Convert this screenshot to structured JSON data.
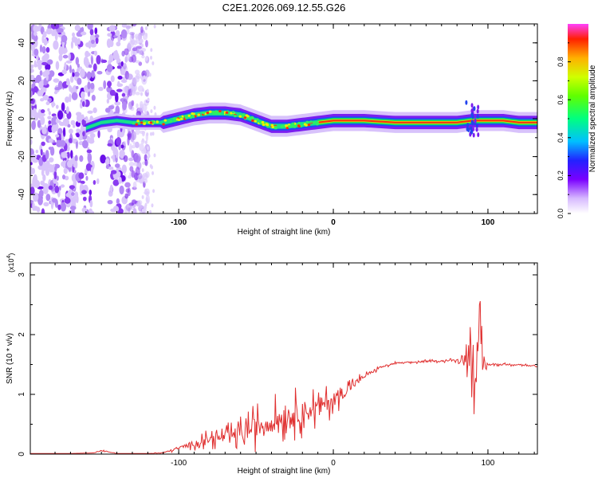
{
  "figure_title": "C2E1.2026.069.12.55.G26",
  "colors": {
    "snr_line": "#e03030",
    "spec_base": "#8a2be2",
    "axis": "#000000",
    "background": "#ffffff"
  },
  "chart_data": [
    {
      "type": "heatmap",
      "title": "C2E1.2026.069.12.55.G26",
      "xlabel": "Height of straight line (km)",
      "ylabel": "Frequency (Hz)",
      "xlim": [
        -196,
        132
      ],
      "ylim": [
        -50,
        50
      ],
      "xticks": [
        -100,
        0,
        100
      ],
      "xtick_labels": [
        "-100",
        "0",
        "100"
      ],
      "yticks": [
        -40,
        -20,
        0,
        20,
        40
      ],
      "ytick_labels": [
        "-40",
        "-20",
        "0",
        "20",
        "40"
      ],
      "colorbar": {
        "label": "Normalized spectral amplitude",
        "range": [
          0,
          1
        ],
        "ticks": [
          0.0,
          0.2,
          0.4,
          0.6,
          0.8
        ],
        "tick_labels": [
          "0.0",
          "0.2",
          "0.4",
          "0.6",
          "0.8"
        ]
      },
      "ridge": {
        "x": [
          -160,
          -150,
          -140,
          -130,
          -120,
          -110,
          -100,
          -90,
          -80,
          -70,
          -60,
          -50,
          -40,
          -30,
          -20,
          -10,
          0,
          10,
          20,
          40,
          60,
          80,
          90,
          100,
          110,
          120,
          132
        ],
        "freq": [
          -5,
          -2,
          -1,
          -2,
          -2,
          -2,
          0,
          2,
          3,
          3,
          2,
          -1,
          -4,
          -4,
          -3,
          -2,
          -1,
          -1,
          -1,
          -2,
          -2,
          -2,
          -1,
          -1,
          -1,
          -2,
          -2
        ]
      },
      "noise_region_x": [
        -196,
        -120
      ],
      "strong_region_x": [
        -10,
        132
      ]
    },
    {
      "type": "line",
      "title": "",
      "xlabel": "Height of straight line (km)",
      "ylabel": "SNR (10 * v/v)",
      "y_scale_label": "(x10",
      "y_scale_exponent": "4",
      "xlim": [
        -196,
        132
      ],
      "ylim": [
        0,
        3.2
      ],
      "xticks": [
        -100,
        0,
        100
      ],
      "xtick_labels": [
        "-100",
        "0",
        "100"
      ],
      "yticks": [
        0,
        1,
        2,
        3
      ],
      "ytick_labels": [
        "0",
        "1",
        "2",
        "3"
      ],
      "series": [
        {
          "name": "SNR",
          "x": [
            -196,
            -170,
            -155,
            -150,
            -140,
            -120,
            -110,
            -100,
            -90,
            -80,
            -70,
            -60,
            -50,
            -40,
            -30,
            -20,
            -10,
            0,
            10,
            20,
            30,
            40,
            60,
            70,
            80,
            85,
            90,
            93,
            95,
            97,
            100,
            110,
            120,
            132
          ],
          "y": [
            0.01,
            0.01,
            0.02,
            0.06,
            0.01,
            0.01,
            0.02,
            0.1,
            0.18,
            0.25,
            0.28,
            0.35,
            0.45,
            0.55,
            0.65,
            0.7,
            0.78,
            0.92,
            1.1,
            1.3,
            1.45,
            1.52,
            1.55,
            1.56,
            1.57,
            1.62,
            1.65,
            1.5,
            1.45,
            1.48,
            1.5,
            1.5,
            1.5,
            1.46
          ],
          "noise_amp": [
            0,
            0,
            0,
            0.02,
            0,
            0,
            0.02,
            0.05,
            0.12,
            0.18,
            0.22,
            0.3,
            0.42,
            0.45,
            0.45,
            0.45,
            0.4,
            0.3,
            0.2,
            0.08,
            0.04,
            0.03,
            0.03,
            0.03,
            0.04,
            0.18,
            0.8,
            1.3,
            1.2,
            0.3,
            0.04,
            0.03,
            0.03,
            0.03
          ]
        }
      ]
    }
  ]
}
